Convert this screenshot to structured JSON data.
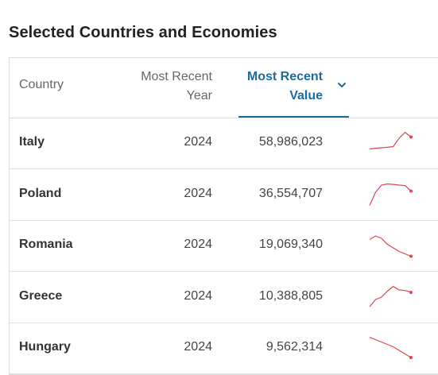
{
  "title": "Selected Countries and Economies",
  "headers": {
    "country": "Country",
    "year_line1": "Most Recent",
    "year_line2": "Year",
    "value_line1": "Most Recent",
    "value_line2": "Value"
  },
  "colors": {
    "accent": "#1c6ba0",
    "sparkline": "#e0454f"
  },
  "icons": {
    "sort": "chevron-down-icon"
  },
  "rows": [
    {
      "country": "Italy",
      "year": "2024",
      "value": "58,986,023",
      "trend": [
        0.25,
        0.28,
        0.3,
        0.32,
        0.35,
        0.7,
        0.95,
        0.75
      ]
    },
    {
      "country": "Poland",
      "year": "2024",
      "value": "36,554,707",
      "trend": [
        0.05,
        0.6,
        0.9,
        0.95,
        0.93,
        0.9,
        0.88,
        0.65
      ]
    },
    {
      "country": "Romania",
      "year": "2024",
      "value": "19,069,340",
      "trend": [
        0.75,
        0.9,
        0.8,
        0.55,
        0.4,
        0.25,
        0.15,
        0.05
      ]
    },
    {
      "country": "Greece",
      "year": "2024",
      "value": "10,388,805",
      "trend": [
        0.1,
        0.4,
        0.5,
        0.75,
        0.95,
        0.8,
        0.78,
        0.7
      ]
    },
    {
      "country": "Hungary",
      "year": "2024",
      "value": "9,562,314",
      "trend": [
        0.95,
        0.85,
        0.75,
        0.65,
        0.55,
        0.4,
        0.25,
        0.1
      ]
    }
  ]
}
